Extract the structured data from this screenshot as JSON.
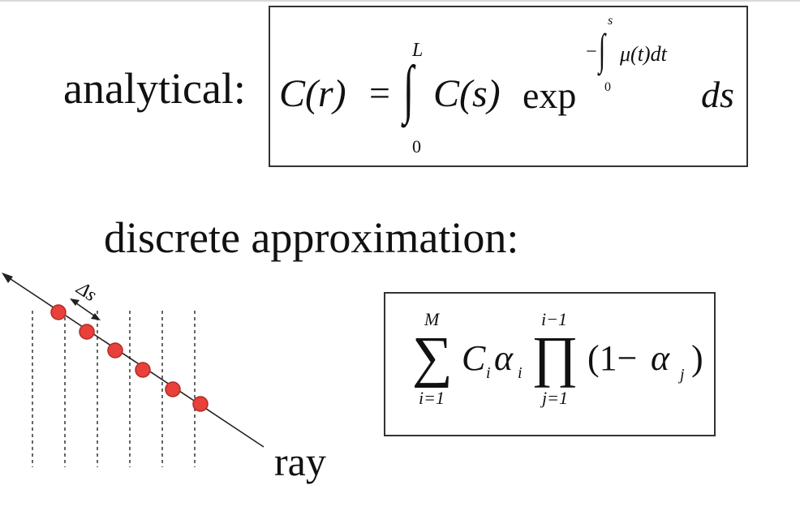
{
  "labels": {
    "analytical": "analytical:",
    "discrete": "discrete approximation:",
    "ray": "ray",
    "delta_s": "Δs"
  },
  "formula_analytical": {
    "lhs": "C(r)",
    "equals": "=",
    "integral_sign": "∫",
    "upper_limit": "L",
    "lower_limit": "0",
    "integrand": "C(s)",
    "exp": "exp",
    "exp_minus": "−",
    "exp_integral_sign": "∫",
    "exp_upper_limit": "s",
    "exp_lower_limit": "0",
    "exp_integrand": "μ(t)dt",
    "differential": "ds"
  },
  "formula_discrete": {
    "sum_sign": "∑",
    "sum_upper": "M",
    "sum_lower": "i=1",
    "term": "C",
    "term_sub": "i",
    "alpha": "α",
    "alpha_sub": "i",
    "prod_sign": "∏",
    "prod_upper": "i−1",
    "prod_lower": "j=1",
    "paren_open": "(1−",
    "alpha_j": "α",
    "alpha_j_sub": "j",
    "paren_close": ")"
  },
  "colors": {
    "sample_point": "#e8403a",
    "sample_outline": "#b22a25",
    "line": "#222222"
  }
}
